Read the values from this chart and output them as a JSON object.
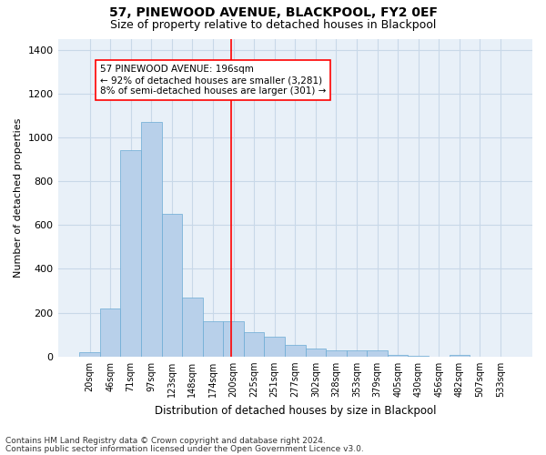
{
  "title": "57, PINEWOOD AVENUE, BLACKPOOL, FY2 0EF",
  "subtitle": "Size of property relative to detached houses in Blackpool",
  "xlabel": "Distribution of detached houses by size in Blackpool",
  "ylabel": "Number of detached properties",
  "footer_line1": "Contains HM Land Registry data © Crown copyright and database right 2024.",
  "footer_line2": "Contains public sector information licensed under the Open Government Licence v3.0.",
  "bin_labels": [
    "20sqm",
    "46sqm",
    "71sqm",
    "97sqm",
    "123sqm",
    "148sqm",
    "174sqm",
    "200sqm",
    "225sqm",
    "251sqm",
    "277sqm",
    "302sqm",
    "328sqm",
    "353sqm",
    "379sqm",
    "405sqm",
    "430sqm",
    "456sqm",
    "482sqm",
    "507sqm",
    "533sqm"
  ],
  "bar_values": [
    18,
    220,
    940,
    1070,
    650,
    270,
    160,
    160,
    110,
    90,
    55,
    38,
    30,
    30,
    30,
    8,
    5,
    0,
    8,
    0,
    0
  ],
  "bar_color": "#b8d0ea",
  "bar_edge_color": "#6aaad4",
  "grid_color": "#c8d8e8",
  "background_color": "#e8f0f8",
  "marker_color": "red",
  "annotation_text": "57 PINEWOOD AVENUE: 196sqm\n← 92% of detached houses are smaller (3,281)\n8% of semi-detached houses are larger (301) →",
  "annotation_box_color": "white",
  "annotation_box_edge": "red",
  "ylim": [
    0,
    1450
  ],
  "yticks": [
    0,
    200,
    400,
    600,
    800,
    1000,
    1200,
    1400
  ],
  "title_fontsize": 10,
  "subtitle_fontsize": 9,
  "ylabel_fontsize": 8,
  "xlabel_fontsize": 8.5,
  "tick_fontsize": 8,
  "xtick_fontsize": 7,
  "annotation_fontsize": 7.5,
  "footer_fontsize": 6.5
}
